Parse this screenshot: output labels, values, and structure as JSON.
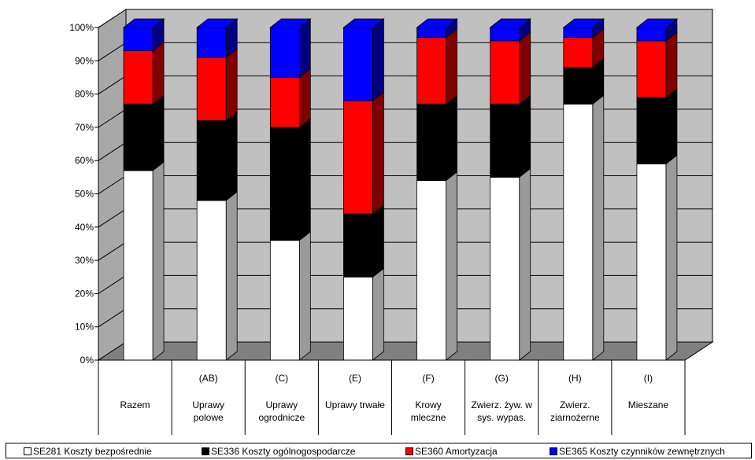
{
  "chart_data": {
    "type": "bar",
    "stacked": true,
    "percent": true,
    "three_d": true,
    "title": "",
    "xlabel": "",
    "ylabel": "",
    "ylim": [
      0,
      100
    ],
    "ytick_labels": [
      "0%",
      "10%",
      "20%",
      "30%",
      "40%",
      "50%",
      "60%",
      "70%",
      "80%",
      "90%",
      "100%"
    ],
    "grid": true,
    "legend_position": "bottom",
    "categories": [
      {
        "code": "",
        "label": [
          "Razem"
        ]
      },
      {
        "code": "(AB)",
        "label": [
          "Uprawy",
          "polowe"
        ]
      },
      {
        "code": "(C)",
        "label": [
          "Uprawy",
          "ogrodnicze"
        ]
      },
      {
        "code": "(E)",
        "label": [
          "Uprawy trwałe"
        ]
      },
      {
        "code": "(F)",
        "label": [
          "Krowy",
          "mleczne"
        ]
      },
      {
        "code": "(G)",
        "label": [
          "Zwierz. żyw. w",
          "sys. wypas."
        ]
      },
      {
        "code": "(H)",
        "label": [
          "Zwierz.",
          "ziarnożerne"
        ]
      },
      {
        "code": "(I)",
        "label": [
          "Mieszane"
        ]
      }
    ],
    "series": [
      {
        "name": "SE281 Koszty bezpośrednie",
        "color": "#ffffff",
        "side_color": "#9a9a9a",
        "top_color": "#ffffff",
        "values": [
          57,
          48,
          36,
          25,
          54,
          55,
          77,
          59
        ]
      },
      {
        "name": "SE336 Koszty ogólnogospodarcze",
        "color": "#000000",
        "side_color": "#000000",
        "top_color": "#000000",
        "values": [
          20,
          24,
          34,
          19,
          23,
          22,
          11,
          20
        ]
      },
      {
        "name": "SE360 Amortyzacja",
        "color": "#ff0000",
        "side_color": "#800000",
        "top_color": "#ff0000",
        "values": [
          16,
          19,
          15,
          34,
          20,
          19,
          9,
          17
        ]
      },
      {
        "name": "SE365 Koszty czynników zewnętrznych",
        "color": "#0000ff",
        "side_color": "#000080",
        "top_color": "#0000ff",
        "values": [
          7,
          9,
          15,
          22,
          3,
          4,
          3,
          4
        ]
      }
    ]
  }
}
